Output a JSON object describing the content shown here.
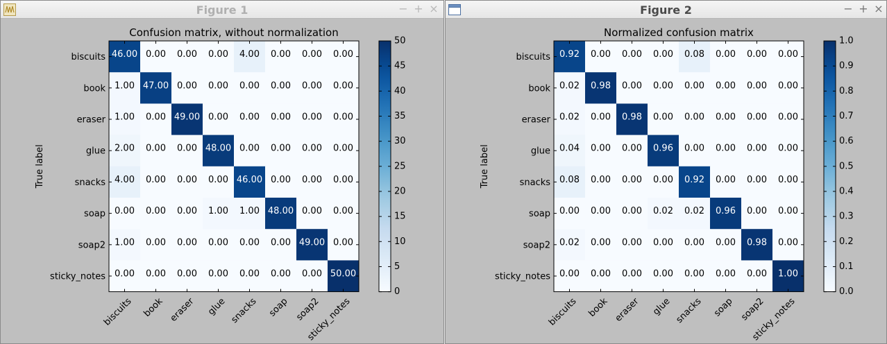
{
  "figures": [
    {
      "window_title": "Figure 1",
      "active": false,
      "icon": "matplotlib-app-icon",
      "controls": [
        "−",
        "+",
        "×"
      ]
    },
    {
      "window_title": "Figure 2",
      "active": true,
      "icon": "window-app-icon",
      "controls": [
        "−",
        "+",
        "×"
      ]
    }
  ],
  "chart_data": [
    {
      "type": "heatmap",
      "title": "Confusion matrix, without normalization",
      "ylabel": "True label",
      "xlabel": "",
      "categories": [
        "biscuits",
        "book",
        "eraser",
        "glue",
        "snacks",
        "soap",
        "soap2",
        "sticky_notes"
      ],
      "values": [
        [
          46,
          0,
          0,
          0,
          4,
          0,
          0,
          0
        ],
        [
          1,
          47,
          0,
          0,
          0,
          0,
          0,
          0
        ],
        [
          1,
          0,
          49,
          0,
          0,
          0,
          0,
          0
        ],
        [
          2,
          0,
          0,
          48,
          0,
          0,
          0,
          0
        ],
        [
          4,
          0,
          0,
          0,
          46,
          0,
          0,
          0
        ],
        [
          0,
          0,
          0,
          1,
          1,
          48,
          0,
          0
        ],
        [
          1,
          0,
          0,
          0,
          0,
          0,
          49,
          0
        ],
        [
          0,
          0,
          0,
          0,
          0,
          0,
          0,
          50
        ]
      ],
      "value_format_decimals": 2,
      "colormap": "Blues",
      "colorbar_range": [
        0,
        50
      ],
      "colorbar_ticks": [
        0,
        5,
        10,
        15,
        20,
        25,
        30,
        35,
        40,
        45,
        50
      ],
      "colorbar_tick_decimals": 0,
      "text_colors": {
        "dark": "#000000",
        "light": "#ffffff"
      }
    },
    {
      "type": "heatmap",
      "title": "Normalized confusion matrix",
      "ylabel": "True label",
      "xlabel": "",
      "categories": [
        "biscuits",
        "book",
        "eraser",
        "glue",
        "snacks",
        "soap",
        "soap2",
        "sticky_notes"
      ],
      "values": [
        [
          0.92,
          0.0,
          0.0,
          0.0,
          0.08,
          0.0,
          0.0,
          0.0
        ],
        [
          0.02,
          0.98,
          0.0,
          0.0,
          0.0,
          0.0,
          0.0,
          0.0
        ],
        [
          0.02,
          0.0,
          0.98,
          0.0,
          0.0,
          0.0,
          0.0,
          0.0
        ],
        [
          0.04,
          0.0,
          0.0,
          0.96,
          0.0,
          0.0,
          0.0,
          0.0
        ],
        [
          0.08,
          0.0,
          0.0,
          0.0,
          0.92,
          0.0,
          0.0,
          0.0
        ],
        [
          0.0,
          0.0,
          0.0,
          0.02,
          0.02,
          0.96,
          0.0,
          0.0
        ],
        [
          0.02,
          0.0,
          0.0,
          0.0,
          0.0,
          0.0,
          0.98,
          0.0
        ],
        [
          0.0,
          0.0,
          0.0,
          0.0,
          0.0,
          0.0,
          0.0,
          1.0
        ]
      ],
      "value_format_decimals": 2,
      "colormap": "Blues",
      "colorbar_range": [
        0,
        1
      ],
      "colorbar_ticks": [
        0.0,
        0.1,
        0.2,
        0.3,
        0.4,
        0.5,
        0.6,
        0.7,
        0.8,
        0.9,
        1.0
      ],
      "colorbar_tick_decimals": 1,
      "text_colors": {
        "dark": "#000000",
        "light": "#ffffff"
      }
    }
  ]
}
